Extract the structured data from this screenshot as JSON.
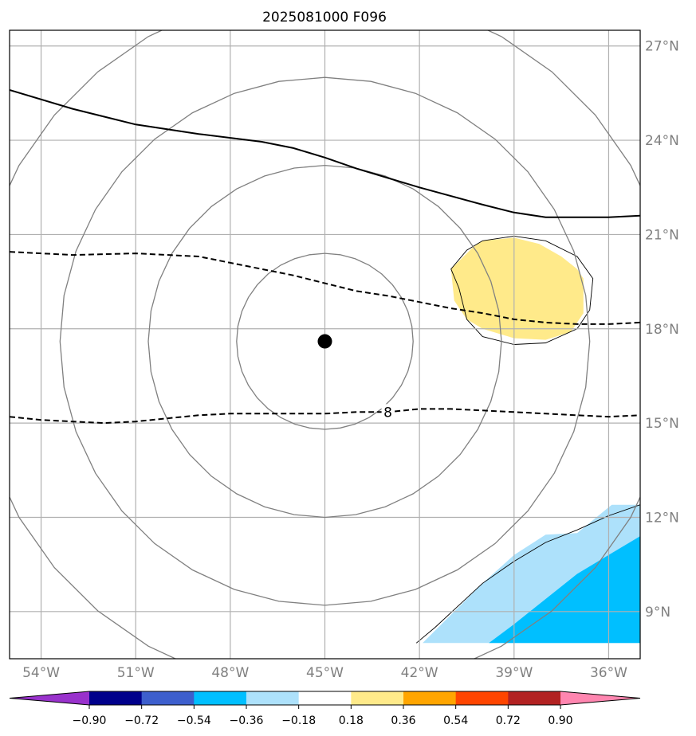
{
  "title": "2025081000 F096",
  "map": {
    "lon_range": [
      -55.0,
      -35.0
    ],
    "lat_range": [
      7.5,
      27.5
    ],
    "lon_ticks": [
      -54,
      -51,
      -48,
      -45,
      -42,
      -39,
      -36
    ],
    "lon_tick_labels": [
      "54°W",
      "51°W",
      "48°W",
      "45°W",
      "42°W",
      "39°W",
      "36°W"
    ],
    "lat_ticks": [
      9,
      12,
      15,
      18,
      21,
      24,
      27
    ],
    "lat_tick_labels": [
      "9°N",
      "12°N",
      "15°N",
      "18°N",
      "21°N",
      "24°N",
      "27°N"
    ],
    "gridlines": true,
    "center_marker": {
      "lon": -45.0,
      "lat": 17.6
    },
    "range_ring_radii_deg": [
      2.8,
      5.6,
      8.4,
      11.2
    ],
    "contour_solid": [
      [
        -55.0,
        25.6
      ],
      [
        -53.0,
        25.0
      ],
      [
        -51.0,
        24.5
      ],
      [
        -49.0,
        24.2
      ],
      [
        -47.0,
        23.95
      ],
      [
        -46.0,
        23.75
      ],
      [
        -45.0,
        23.45
      ],
      [
        -44.0,
        23.1
      ],
      [
        -42.0,
        22.5
      ],
      [
        -40.0,
        21.95
      ],
      [
        -39.0,
        21.7
      ],
      [
        -38.0,
        21.55
      ],
      [
        -37.0,
        21.55
      ],
      [
        -36.0,
        21.55
      ],
      [
        -35.0,
        21.6
      ]
    ],
    "contour_dashed_upper": [
      [
        -55.0,
        20.45
      ],
      [
        -53.0,
        20.35
      ],
      [
        -51.0,
        20.4
      ],
      [
        -49.0,
        20.3
      ],
      [
        -48.0,
        20.1
      ],
      [
        -47.0,
        19.9
      ],
      [
        -46.0,
        19.7
      ],
      [
        -45.0,
        19.45
      ],
      [
        -44.0,
        19.2
      ],
      [
        -43.0,
        19.05
      ],
      [
        -42.0,
        18.85
      ],
      [
        -41.0,
        18.65
      ],
      [
        -40.0,
        18.5
      ],
      [
        -39.0,
        18.3
      ],
      [
        -38.0,
        18.2
      ],
      [
        -37.0,
        18.15
      ],
      [
        -36.0,
        18.15
      ],
      [
        -35.0,
        18.2
      ]
    ],
    "contour_dashed_lower": [
      [
        -55.0,
        15.2
      ],
      [
        -54.0,
        15.1
      ],
      [
        -53.0,
        15.05
      ],
      [
        -52.0,
        15.0
      ],
      [
        -51.0,
        15.05
      ],
      [
        -50.0,
        15.15
      ],
      [
        -49.0,
        15.25
      ],
      [
        -48.0,
        15.3
      ],
      [
        -47.0,
        15.3
      ],
      [
        -46.0,
        15.3
      ],
      [
        -45.0,
        15.3
      ],
      [
        -44.0,
        15.35
      ],
      [
        -43.0,
        15.35
      ],
      [
        -42.0,
        15.45
      ],
      [
        -41.0,
        15.45
      ],
      [
        -40.0,
        15.4
      ],
      [
        -39.0,
        15.35
      ],
      [
        -38.0,
        15.3
      ],
      [
        -37.0,
        15.25
      ],
      [
        -36.0,
        15.2
      ],
      [
        -35.0,
        15.25
      ]
    ],
    "contour_label": {
      "text": "8",
      "lon": -43.0,
      "lat": 15.35
    },
    "blob_outline": [
      [
        -40.75,
        19.3
      ],
      [
        -41.0,
        19.9
      ],
      [
        -40.5,
        20.5
      ],
      [
        -40.0,
        20.8
      ],
      [
        -39.0,
        20.95
      ],
      [
        -38.0,
        20.8
      ],
      [
        -37.0,
        20.3
      ],
      [
        -36.5,
        19.6
      ],
      [
        -36.6,
        18.6
      ],
      [
        -37.0,
        18.0
      ],
      [
        -38.0,
        17.55
      ],
      [
        -39.0,
        17.5
      ],
      [
        -40.0,
        17.75
      ],
      [
        -40.5,
        18.3
      ],
      [
        -40.75,
        19.3
      ]
    ],
    "blob_fill_yellow": [
      [
        -40.9,
        18.9
      ],
      [
        -41.0,
        19.9
      ],
      [
        -40.3,
        20.6
      ],
      [
        -40.0,
        20.8
      ],
      [
        -39.0,
        20.9
      ],
      [
        -38.2,
        20.7
      ],
      [
        -37.5,
        20.3
      ],
      [
        -37.0,
        19.9
      ],
      [
        -36.8,
        19.6
      ],
      [
        -36.8,
        18.5
      ],
      [
        -37.2,
        17.9
      ],
      [
        -38.0,
        17.65
      ],
      [
        -39.0,
        17.7
      ],
      [
        -40.0,
        18.0
      ],
      [
        -40.5,
        18.3
      ],
      [
        -40.9,
        18.9
      ]
    ],
    "coast_light_blue": [
      [
        -35.0,
        12.4
      ],
      [
        -35.9,
        12.4
      ],
      [
        -37.0,
        11.5
      ],
      [
        -38.0,
        11.45
      ],
      [
        -39.0,
        10.8
      ],
      [
        -40.0,
        9.9
      ],
      [
        -41.0,
        8.9
      ],
      [
        -41.9,
        8.0
      ],
      [
        -35.0,
        8.0
      ]
    ],
    "coast_deep_blue": [
      [
        -35.0,
        11.4
      ],
      [
        -36.0,
        10.8
      ],
      [
        -37.0,
        10.2
      ],
      [
        -38.0,
        9.4
      ],
      [
        -39.0,
        8.6
      ],
      [
        -39.8,
        8.0
      ],
      [
        -35.0,
        8.0
      ]
    ],
    "coast_outline": [
      [
        -42.1,
        8.0
      ],
      [
        -41.5,
        8.5
      ],
      [
        -40.0,
        9.9
      ],
      [
        -39.0,
        10.6
      ],
      [
        -38.0,
        11.2
      ],
      [
        -37.0,
        11.6
      ],
      [
        -36.0,
        12.05
      ],
      [
        -35.0,
        12.4
      ]
    ]
  },
  "colors": {
    "grid": "#b0b0b0",
    "ring": "#808080",
    "contour": "#000000",
    "yellow_fill": "#ffea8a",
    "light_blue_fill": "#ade1fb",
    "deep_blue_fill": "#00bfff",
    "marker": "#000000"
  },
  "colorbar": {
    "tick_labels": [
      "−0.90",
      "−0.72",
      "−0.54",
      "−0.36",
      "−0.18",
      "0.18",
      "0.36",
      "0.54",
      "0.72",
      "0.90"
    ],
    "colors": [
      "#9932cc",
      "#00008b",
      "#3d5fcd",
      "#00bfff",
      "#ade1fb",
      "#ffffff",
      "#ffea8a",
      "#ffa500",
      "#ff4500",
      "#b22222",
      "#ff86b0"
    ]
  }
}
